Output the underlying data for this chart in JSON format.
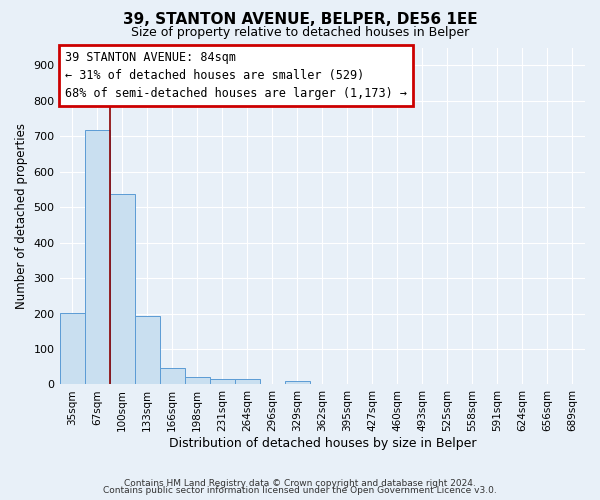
{
  "title": "39, STANTON AVENUE, BELPER, DE56 1EE",
  "subtitle": "Size of property relative to detached houses in Belper",
  "xlabel": "Distribution of detached houses by size in Belper",
  "ylabel": "Number of detached properties",
  "footer_lines": [
    "Contains HM Land Registry data © Crown copyright and database right 2024.",
    "Contains public sector information licensed under the Open Government Licence v3.0."
  ],
  "bar_labels": [
    "35sqm",
    "67sqm",
    "100sqm",
    "133sqm",
    "166sqm",
    "198sqm",
    "231sqm",
    "264sqm",
    "296sqm",
    "329sqm",
    "362sqm",
    "395sqm",
    "427sqm",
    "460sqm",
    "493sqm",
    "525sqm",
    "558sqm",
    "591sqm",
    "624sqm",
    "656sqm",
    "689sqm"
  ],
  "bar_values": [
    202,
    716,
    537,
    194,
    46,
    20,
    14,
    14,
    0,
    10,
    0,
    0,
    0,
    0,
    0,
    0,
    0,
    0,
    0,
    0,
    0
  ],
  "bar_color": "#c9dff0",
  "bar_edge_color": "#5b9bd5",
  "annotation_box_text": "39 STANTON AVENUE: 84sqm\n← 31% of detached houses are smaller (529)\n68% of semi-detached houses are larger (1,173) →",
  "vline_color": "#8b0000",
  "ylim": [
    0,
    950
  ],
  "yticks": [
    0,
    100,
    200,
    300,
    400,
    500,
    600,
    700,
    800,
    900
  ],
  "background_color": "#e8f0f8",
  "grid_color": "#ffffff",
  "annotation_box_color": "#ffffff",
  "annotation_box_edge_color": "#cc0000"
}
